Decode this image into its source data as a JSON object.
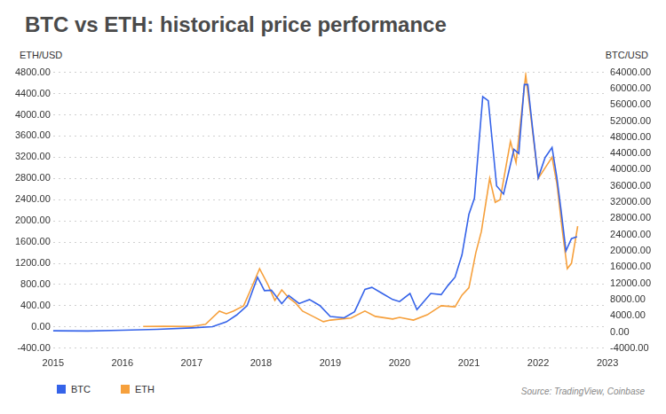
{
  "chart_data": {
    "type": "line",
    "title": "BTC vs ETH: historical price performance",
    "y_label": "ETH/USD",
    "y2_label": "BTC/USD",
    "source": "Source: TradingView, Coinbase",
    "xlim": [
      2015,
      2023
    ],
    "xticks": [
      2015,
      2016,
      2017,
      2018,
      2019,
      2020,
      2021,
      2022,
      2023
    ],
    "ylim": [
      -400,
      4800
    ],
    "yticks": [
      {
        "value": -400,
        "label": "-400.00"
      },
      {
        "value": 0,
        "label": "0.00"
      },
      {
        "value": 400,
        "label": "400.00"
      },
      {
        "value": 800,
        "label": "800.00"
      },
      {
        "value": 1200,
        "label": "1200.00"
      },
      {
        "value": 1600,
        "label": "1600.00"
      },
      {
        "value": 2000,
        "label": "2000.00"
      },
      {
        "value": 2400,
        "label": "2400.00"
      },
      {
        "value": 2800,
        "label": "2800.00"
      },
      {
        "value": 3200,
        "label": "3200.00"
      },
      {
        "value": 3600,
        "label": "3600.00"
      },
      {
        "value": 4000,
        "label": "4000.00"
      },
      {
        "value": 4400,
        "label": "4400.00"
      },
      {
        "value": 4800,
        "label": "4800.00"
      }
    ],
    "y2lim": [
      -4000,
      64000
    ],
    "y2ticks": [
      {
        "value": -4000,
        "label": "-4000.00"
      },
      {
        "value": 0,
        "label": "0.00"
      },
      {
        "value": 4000,
        "label": "4000.00"
      },
      {
        "value": 8000,
        "label": "8000.00"
      },
      {
        "value": 12000,
        "label": "12000.00"
      },
      {
        "value": 16000,
        "label": "16000.00"
      },
      {
        "value": 20000,
        "label": "20000.00"
      },
      {
        "value": 24000,
        "label": "24000.00"
      },
      {
        "value": 28000,
        "label": "28000.00"
      },
      {
        "value": 32000,
        "label": "32000.00"
      },
      {
        "value": 36000,
        "label": "36000.00"
      },
      {
        "value": 40000,
        "label": "40000.00"
      },
      {
        "value": 44000,
        "label": "44000.00"
      },
      {
        "value": 48000,
        "label": "48000.00"
      },
      {
        "value": 52000,
        "label": "52000.00"
      },
      {
        "value": 56000,
        "label": "56000.00"
      },
      {
        "value": 60000,
        "label": "60000.00"
      },
      {
        "value": 64000,
        "label": "64000.00"
      }
    ],
    "grid": true,
    "legend": "bottom-left",
    "series": [
      {
        "name": "BTC",
        "color": "#3563e9",
        "axis": "y2",
        "x": [
          2015.0,
          2015.5,
          2016.0,
          2016.5,
          2017.0,
          2017.3,
          2017.5,
          2017.65,
          2017.8,
          2017.95,
          2018.05,
          2018.15,
          2018.3,
          2018.4,
          2018.55,
          2018.7,
          2018.85,
          2019.0,
          2019.2,
          2019.35,
          2019.5,
          2019.6,
          2019.75,
          2019.9,
          2020.0,
          2020.15,
          2020.25,
          2020.45,
          2020.6,
          2020.7,
          2020.8,
          2020.9,
          2021.0,
          2021.08,
          2021.2,
          2021.28,
          2021.4,
          2021.5,
          2021.65,
          2021.72,
          2021.8,
          2021.85,
          2021.92,
          2022.0,
          2022.1,
          2022.2,
          2022.27,
          2022.33,
          2022.4,
          2022.48,
          2022.56
        ],
        "values": [
          300,
          250,
          430,
          650,
          1000,
          1300,
          2500,
          4200,
          6500,
          13500,
          10200,
          10300,
          7000,
          9000,
          7000,
          8000,
          6500,
          3800,
          3500,
          5000,
          10500,
          11000,
          9500,
          8000,
          7500,
          9500,
          5500,
          9500,
          9200,
          11500,
          13500,
          19000,
          29000,
          33000,
          58000,
          57000,
          36000,
          34000,
          45000,
          44000,
          61000,
          61000,
          50000,
          38000,
          43000,
          45500,
          38000,
          30000,
          20000,
          23000,
          23500
        ]
      },
      {
        "name": "ETH",
        "color": "#f6a03c",
        "axis": "y",
        "x": [
          2016.3,
          2016.6,
          2017.0,
          2017.2,
          2017.4,
          2017.5,
          2017.6,
          2017.75,
          2017.85,
          2017.98,
          2018.1,
          2018.2,
          2018.3,
          2018.4,
          2018.5,
          2018.6,
          2018.75,
          2018.9,
          2019.0,
          2019.3,
          2019.5,
          2019.65,
          2019.9,
          2020.0,
          2020.2,
          2020.4,
          2020.6,
          2020.8,
          2020.9,
          2021.0,
          2021.1,
          2021.18,
          2021.3,
          2021.38,
          2021.45,
          2021.6,
          2021.68,
          2021.82,
          2021.9,
          2022.0,
          2022.1,
          2022.2,
          2022.27,
          2022.35,
          2022.42,
          2022.48,
          2022.57
        ],
        "values": [
          10,
          12,
          10,
          50,
          300,
          250,
          300,
          400,
          700,
          1100,
          800,
          500,
          700,
          550,
          450,
          300,
          200,
          100,
          130,
          170,
          300,
          200,
          150,
          180,
          130,
          230,
          400,
          380,
          600,
          740,
          1400,
          1800,
          2800,
          2350,
          2400,
          3500,
          3100,
          4750,
          3900,
          2800,
          3000,
          3200,
          2700,
          1800,
          1100,
          1200,
          1900
        ]
      }
    ]
  }
}
